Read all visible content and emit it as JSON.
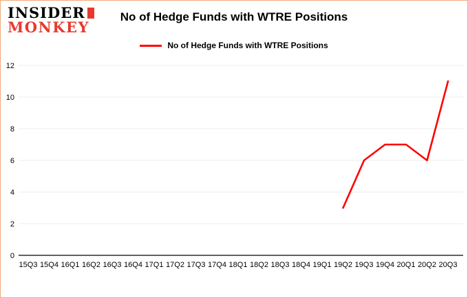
{
  "logo": {
    "line1": "INSIDER",
    "line2": "MONKEY",
    "colors": {
      "text": "#000000",
      "accent": "#e8392e"
    }
  },
  "header": {
    "title": "No of Hedge Funds with WTRE Positions"
  },
  "legend": {
    "label": "No of Hedge Funds with WTRE Positions",
    "color": "#ff0000"
  },
  "chart_data": {
    "type": "line",
    "title": "No of Hedge Funds with WTRE Positions",
    "categories": [
      "15Q3",
      "15Q4",
      "16Q1",
      "16Q2",
      "16Q3",
      "16Q4",
      "17Q1",
      "17Q2",
      "17Q3",
      "17Q4",
      "18Q1",
      "18Q2",
      "18Q3",
      "18Q4",
      "19Q1",
      "19Q2",
      "19Q3",
      "19Q4",
      "20Q1",
      "20Q2",
      "20Q3"
    ],
    "series": [
      {
        "name": "No of Hedge Funds with WTRE Positions",
        "color": "#ff0000",
        "values": [
          null,
          null,
          null,
          null,
          null,
          null,
          null,
          null,
          null,
          null,
          null,
          null,
          null,
          null,
          null,
          3,
          6,
          7,
          7,
          6,
          11
        ]
      }
    ],
    "xlabel": "",
    "ylabel": "",
    "ylim": [
      0,
      12
    ],
    "ytick_step": 2,
    "grid": true,
    "legend_position": "top",
    "axis_color": "#000000",
    "grid_color": "#ededed"
  },
  "frame": {
    "background": "#ffffff",
    "border_color": "#f0a878"
  }
}
